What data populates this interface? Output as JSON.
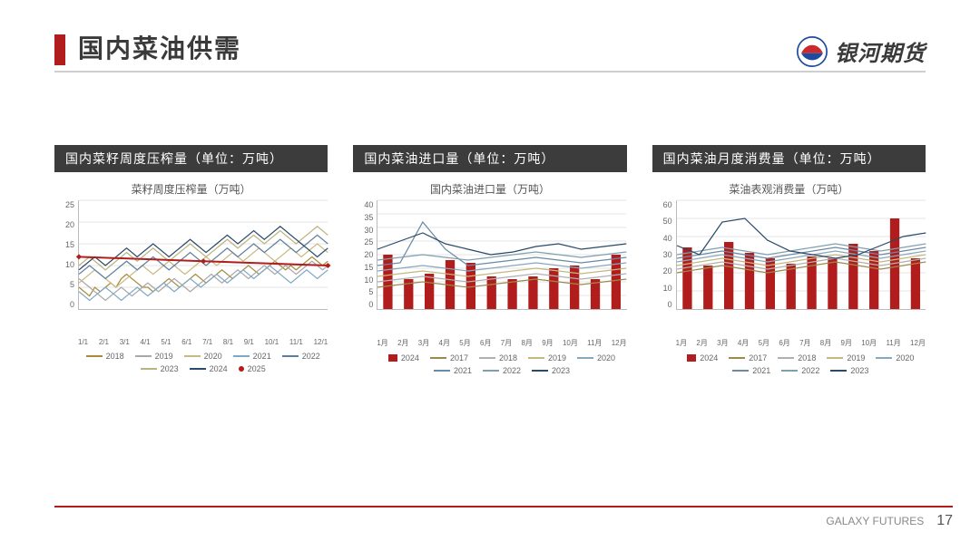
{
  "slide": {
    "title": "国内菜油供需",
    "brand": "银河期货",
    "footer_brand": "GALAXY FUTURES",
    "page_number": "17",
    "accent_color": "#b11c1c",
    "logo_blue": "#1e4aa0",
    "logo_red": "#c72b2b"
  },
  "charts": [
    {
      "banner": "国内菜籽周度压榨量（单位：万吨）",
      "subtitle": "菜籽周度压榨量（万吨）",
      "type": "line",
      "ylim": [
        0,
        25
      ],
      "ytick_step": 5,
      "x_labels": [
        "1/1",
        "2/1",
        "3/1",
        "4/1",
        "5/1",
        "6/1",
        "7/1",
        "8/1",
        "9/1",
        "10/1",
        "11/1",
        "12/1"
      ],
      "background_color": "#ffffff",
      "series": [
        {
          "name": "2018",
          "color": "#a58b3a",
          "values": [
            5,
            4,
            3,
            5,
            4,
            5,
            6,
            5,
            7,
            8,
            7,
            6,
            5,
            5,
            4,
            5,
            6,
            7,
            6,
            5,
            6,
            7,
            8,
            7,
            6,
            7,
            8,
            9,
            8,
            7,
            8,
            9,
            10,
            9,
            8,
            9,
            10,
            11,
            10,
            9,
            10,
            9,
            10,
            11,
            12,
            11,
            10,
            11
          ]
        },
        {
          "name": "2019",
          "color": "#a8a8a8",
          "values": [
            7,
            6,
            5,
            4,
            3,
            2,
            3,
            4,
            5,
            4,
            3,
            4,
            5,
            6,
            5,
            4,
            5,
            6,
            7,
            6,
            5,
            4,
            5,
            6,
            7,
            8,
            7,
            6,
            7,
            8,
            9,
            8,
            7,
            8,
            9,
            10,
            9,
            8,
            9,
            10,
            9,
            8,
            9,
            10,
            11,
            10,
            9,
            10
          ]
        },
        {
          "name": "2020",
          "color": "#c9b980",
          "values": [
            6,
            7,
            8,
            9,
            8,
            7,
            6,
            5,
            6,
            7,
            8,
            9,
            10,
            9,
            8,
            9,
            10,
            11,
            10,
            9,
            8,
            9,
            10,
            11,
            12,
            11,
            10,
            11,
            12,
            13,
            12,
            11,
            12,
            13,
            14,
            13,
            12,
            11,
            12,
            13,
            14,
            13,
            12,
            13,
            14,
            15,
            14,
            13
          ]
        },
        {
          "name": "2021",
          "color": "#7fa8c4",
          "values": [
            4,
            3,
            2,
            3,
            4,
            5,
            4,
            3,
            2,
            3,
            4,
            5,
            4,
            3,
            4,
            5,
            6,
            5,
            4,
            5,
            6,
            7,
            6,
            5,
            6,
            7,
            8,
            7,
            6,
            7,
            8,
            9,
            8,
            7,
            8,
            9,
            10,
            9,
            8,
            7,
            6,
            7,
            8,
            9,
            8,
            7,
            8,
            9
          ]
        },
        {
          "name": "2022",
          "color": "#5d7e9c",
          "values": [
            8,
            9,
            10,
            9,
            8,
            7,
            8,
            9,
            10,
            11,
            10,
            9,
            10,
            11,
            12,
            11,
            10,
            9,
            10,
            11,
            12,
            13,
            12,
            11,
            10,
            11,
            12,
            13,
            14,
            13,
            12,
            13,
            14,
            15,
            14,
            13,
            14,
            15,
            16,
            15,
            14,
            13,
            14,
            15,
            16,
            17,
            16,
            15
          ]
        },
        {
          "name": "2023",
          "color": "#bcb27d",
          "values": [
            10,
            11,
            12,
            11,
            10,
            9,
            10,
            11,
            12,
            13,
            12,
            11,
            12,
            13,
            14,
            13,
            12,
            11,
            12,
            13,
            14,
            15,
            14,
            13,
            12,
            13,
            14,
            15,
            16,
            15,
            14,
            15,
            16,
            17,
            16,
            15,
            16,
            17,
            18,
            17,
            16,
            15,
            16,
            17,
            18,
            19,
            18,
            17
          ]
        },
        {
          "name": "2024",
          "color": "#2a4a68",
          "values": [
            9,
            10,
            11,
            12,
            11,
            10,
            11,
            12,
            13,
            14,
            13,
            12,
            13,
            14,
            15,
            14,
            13,
            12,
            13,
            14,
            15,
            16,
            15,
            14,
            13,
            14,
            15,
            16,
            17,
            16,
            15,
            16,
            17,
            18,
            17,
            16,
            17,
            18,
            19,
            18,
            17,
            16,
            15,
            14,
            13,
            12,
            13,
            14
          ]
        },
        {
          "name": "2025",
          "color": "#b11c1c",
          "marker": "diamond",
          "values": [
            12,
            11,
            10
          ]
        }
      ]
    },
    {
      "banner": "国内菜油进口量（单位：万吨）",
      "subtitle": "国内菜油进口量（万吨）",
      "type": "line+bar",
      "ylim": [
        0,
        40
      ],
      "ytick_step": 5,
      "x_labels": [
        "1月",
        "2月",
        "3月",
        "4月",
        "5月",
        "6月",
        "7月",
        "8月",
        "9月",
        "10月",
        "11月",
        "12月"
      ],
      "background_color": "#ffffff",
      "bar": {
        "name": "2024",
        "color": "#b11c1c",
        "values": [
          20,
          11,
          13,
          18,
          17,
          12,
          11,
          12,
          15,
          16,
          11,
          20
        ]
      },
      "series": [
        {
          "name": "2017",
          "color": "#9c8a4a",
          "values": [
            8,
            9,
            10,
            9,
            8,
            9,
            10,
            11,
            10,
            9,
            10,
            11
          ]
        },
        {
          "name": "2018",
          "color": "#b0b0b0",
          "values": [
            10,
            11,
            12,
            11,
            10,
            11,
            12,
            13,
            12,
            11,
            12,
            13
          ]
        },
        {
          "name": "2019",
          "color": "#c4b87c",
          "values": [
            12,
            13,
            14,
            13,
            12,
            13,
            14,
            15,
            14,
            13,
            14,
            15
          ]
        },
        {
          "name": "2020",
          "color": "#86a8bd",
          "values": [
            14,
            15,
            16,
            15,
            14,
            15,
            16,
            17,
            16,
            15,
            16,
            17
          ]
        },
        {
          "name": "2021",
          "color": "#6b8aa3",
          "values": [
            16,
            17,
            32,
            22,
            16,
            17,
            18,
            19,
            18,
            17,
            18,
            19
          ]
        },
        {
          "name": "2022",
          "color": "#7f9fae",
          "values": [
            18,
            19,
            20,
            19,
            18,
            19,
            20,
            21,
            20,
            19,
            20,
            21
          ]
        },
        {
          "name": "2023",
          "color": "#2a4a68",
          "values": [
            22,
            25,
            28,
            24,
            22,
            20,
            21,
            23,
            24,
            22,
            23,
            24
          ]
        }
      ]
    },
    {
      "banner": "国内菜油月度消费量（单位：万吨）",
      "subtitle": "菜油表观消费量（万吨）",
      "type": "line+bar",
      "ylim": [
        0,
        60
      ],
      "ytick_step": 10,
      "x_labels": [
        "1月",
        "2月",
        "3月",
        "4月",
        "5月",
        "6月",
        "7月",
        "8月",
        "9月",
        "10月",
        "11月",
        "12月"
      ],
      "background_color": "#ffffff",
      "bar": {
        "name": "2024",
        "color": "#b11c1c",
        "values": [
          34,
          24,
          37,
          31,
          28,
          25,
          29,
          28,
          36,
          32,
          50,
          28
        ]
      },
      "series": [
        {
          "name": "2017",
          "color": "#9c8a4a",
          "values": [
            20,
            22,
            24,
            22,
            20,
            22,
            24,
            26,
            24,
            22,
            24,
            26
          ]
        },
        {
          "name": "2018",
          "color": "#b0b0b0",
          "values": [
            22,
            24,
            26,
            24,
            22,
            24,
            26,
            28,
            26,
            24,
            26,
            28
          ]
        },
        {
          "name": "2019",
          "color": "#c4b87c",
          "values": [
            24,
            26,
            28,
            26,
            24,
            26,
            28,
            30,
            28,
            26,
            28,
            30
          ]
        },
        {
          "name": "2020",
          "color": "#86a8bd",
          "values": [
            26,
            28,
            30,
            28,
            26,
            28,
            30,
            32,
            30,
            28,
            30,
            32
          ]
        },
        {
          "name": "2021",
          "color": "#6b8aa3",
          "values": [
            28,
            30,
            32,
            30,
            28,
            30,
            32,
            34,
            32,
            30,
            32,
            34
          ]
        },
        {
          "name": "2022",
          "color": "#7f9fae",
          "values": [
            30,
            32,
            34,
            32,
            30,
            32,
            34,
            36,
            34,
            32,
            34,
            36
          ]
        },
        {
          "name": "2023",
          "color": "#2a4a68",
          "values": [
            35,
            30,
            48,
            50,
            38,
            32,
            30,
            28,
            30,
            35,
            40,
            42
          ]
        }
      ]
    }
  ]
}
